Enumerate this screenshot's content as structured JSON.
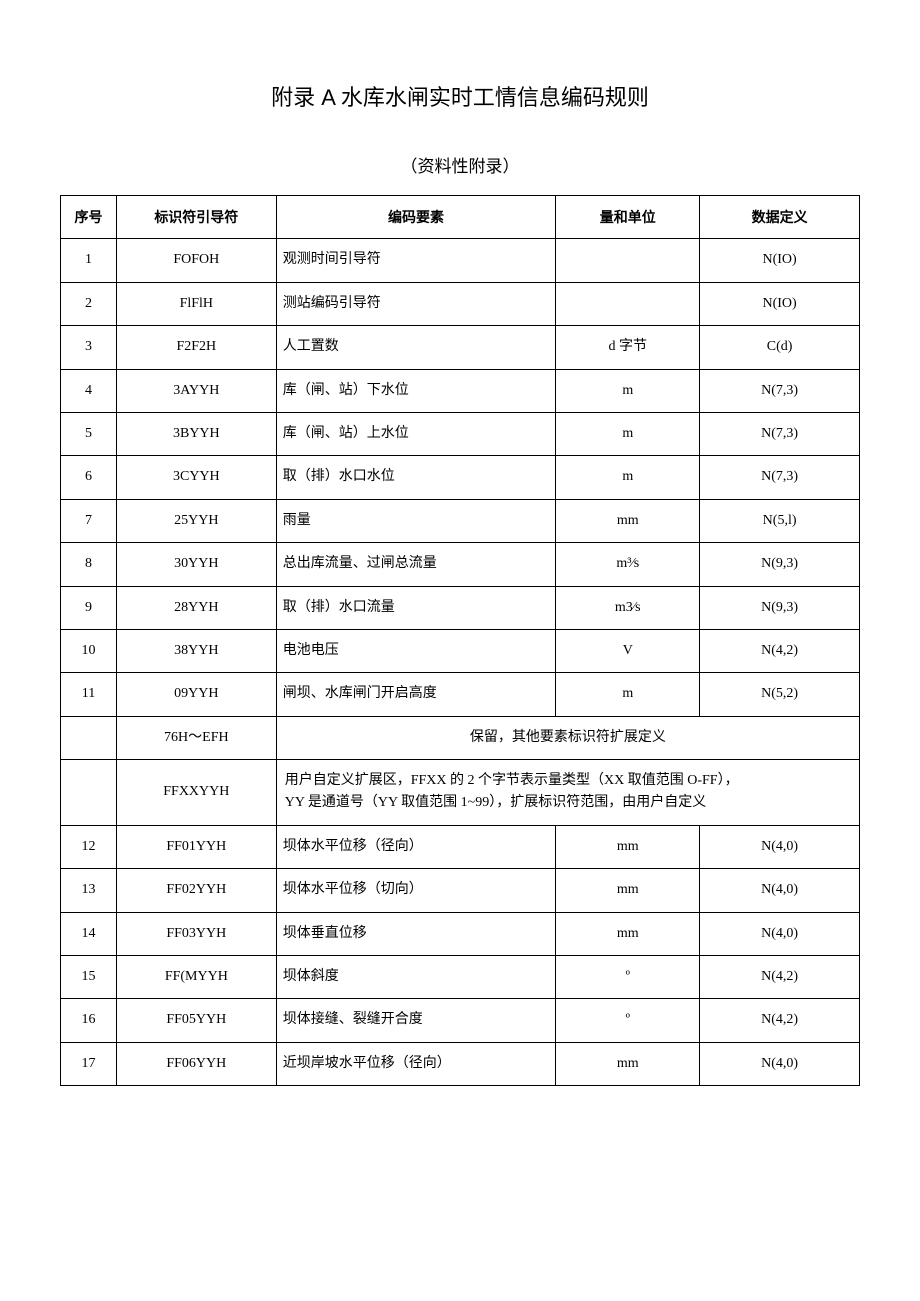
{
  "title": "附录 A 水库水闸实时工情信息编码规则",
  "subtitle": "（资料性附录）",
  "headers": {
    "seq": "序号",
    "id": "标识符引导符",
    "elem": "编码要素",
    "unit": "量和单位",
    "def": "数据定义"
  },
  "rows": [
    {
      "seq": "1",
      "id": "FOFOH",
      "elem": "观测时间引导符",
      "unit": "",
      "def": "N(IO)"
    },
    {
      "seq": "2",
      "id": "FlFlH",
      "elem": "测站编码引导符",
      "unit": "",
      "def": "N(IO)"
    },
    {
      "seq": "3",
      "id": "F2F2H",
      "elem": "人工置数",
      "unit": "d 字节",
      "def": "C(d)"
    },
    {
      "seq": "4",
      "id": "3AYYH",
      "elem": "库（闸、站）下水位",
      "unit": "m",
      "def": "N(7,3)"
    },
    {
      "seq": "5",
      "id": "3BYYH",
      "elem": "库（闸、站）上水位",
      "unit": "m",
      "def": "N(7,3)"
    },
    {
      "seq": "6",
      "id": "3CYYH",
      "elem": "取（排）水口水位",
      "unit": "m",
      "def": "N(7,3)"
    },
    {
      "seq": "7",
      "id": "25YYH",
      "elem": "雨量",
      "unit": "mm",
      "def": "N(5,l)"
    },
    {
      "seq": "8",
      "id": "30YYH",
      "elem": "总出库流量、过闸总流量",
      "unit": "m³⁄s",
      "def": "N(9,3)"
    },
    {
      "seq": "9",
      "id": "28YYH",
      "elem": "取（排）水口流量",
      "unit": "m3⁄s",
      "def": "N(9,3)"
    },
    {
      "seq": "10",
      "id": "38YYH",
      "elem": "电池电压",
      "unit": "V",
      "def": "N(4,2)"
    },
    {
      "seq": "11",
      "id": "09YYH",
      "elem": "闸坝、水库闸门开启高度",
      "unit": "m",
      "def": "N(5,2)"
    }
  ],
  "merged1": {
    "seq": "",
    "id": "76H～EFH",
    "text": "保留，其他要素标识符扩展定义"
  },
  "merged2": {
    "seq": "",
    "id": "FFXXYYH",
    "text": "用户自定义扩展区，FFXX 的 2 个字节表示量类型（XX 取值范围 O-FF），\nYY 是通道号（YY 取值范围 1~99），扩展标识符范围，由用户自定义"
  },
  "rows2": [
    {
      "seq": "12",
      "id": "FF01YYH",
      "elem": "坝体水平位移（径向）",
      "unit": "mm",
      "def": "N(4,0)"
    },
    {
      "seq": "13",
      "id": "FF02YYH",
      "elem": "坝体水平位移（切向）",
      "unit": "mm",
      "def": "N(4,0)"
    },
    {
      "seq": "14",
      "id": "FF03YYH",
      "elem": "坝体垂直位移",
      "unit": "mm",
      "def": "N(4,0)"
    },
    {
      "seq": "15",
      "id": "FF(MYYH",
      "elem": "坝体斜度",
      "unit": "º",
      "def": "N(4,2)"
    },
    {
      "seq": "16",
      "id": "FF05YYH",
      "elem": "坝体接缝、裂缝开合度",
      "unit": "º",
      "def": "N(4,2)"
    },
    {
      "seq": "17",
      "id": "FF06YYH",
      "elem": "近坝岸坡水平位移（径向）",
      "unit": "mm",
      "def": "N(4,0)"
    }
  ]
}
